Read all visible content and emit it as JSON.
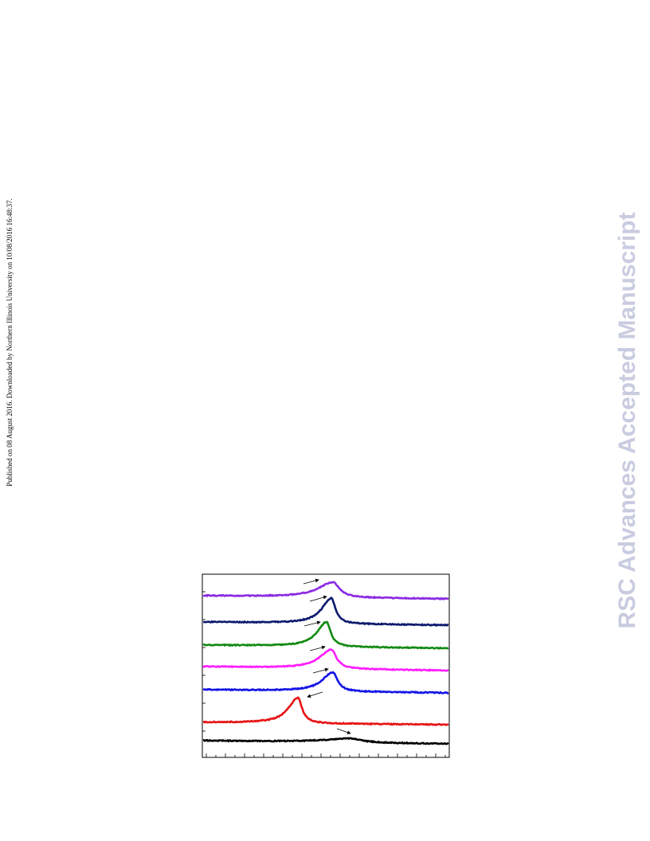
{
  "sidebar": {
    "text": "Published on 08 August 2016. Downloaded by Northern Illinois University on 10/08/2016 16:48:37."
  },
  "watermark": {
    "text": "RSC Advances Accepted Manuscript"
  }
}
